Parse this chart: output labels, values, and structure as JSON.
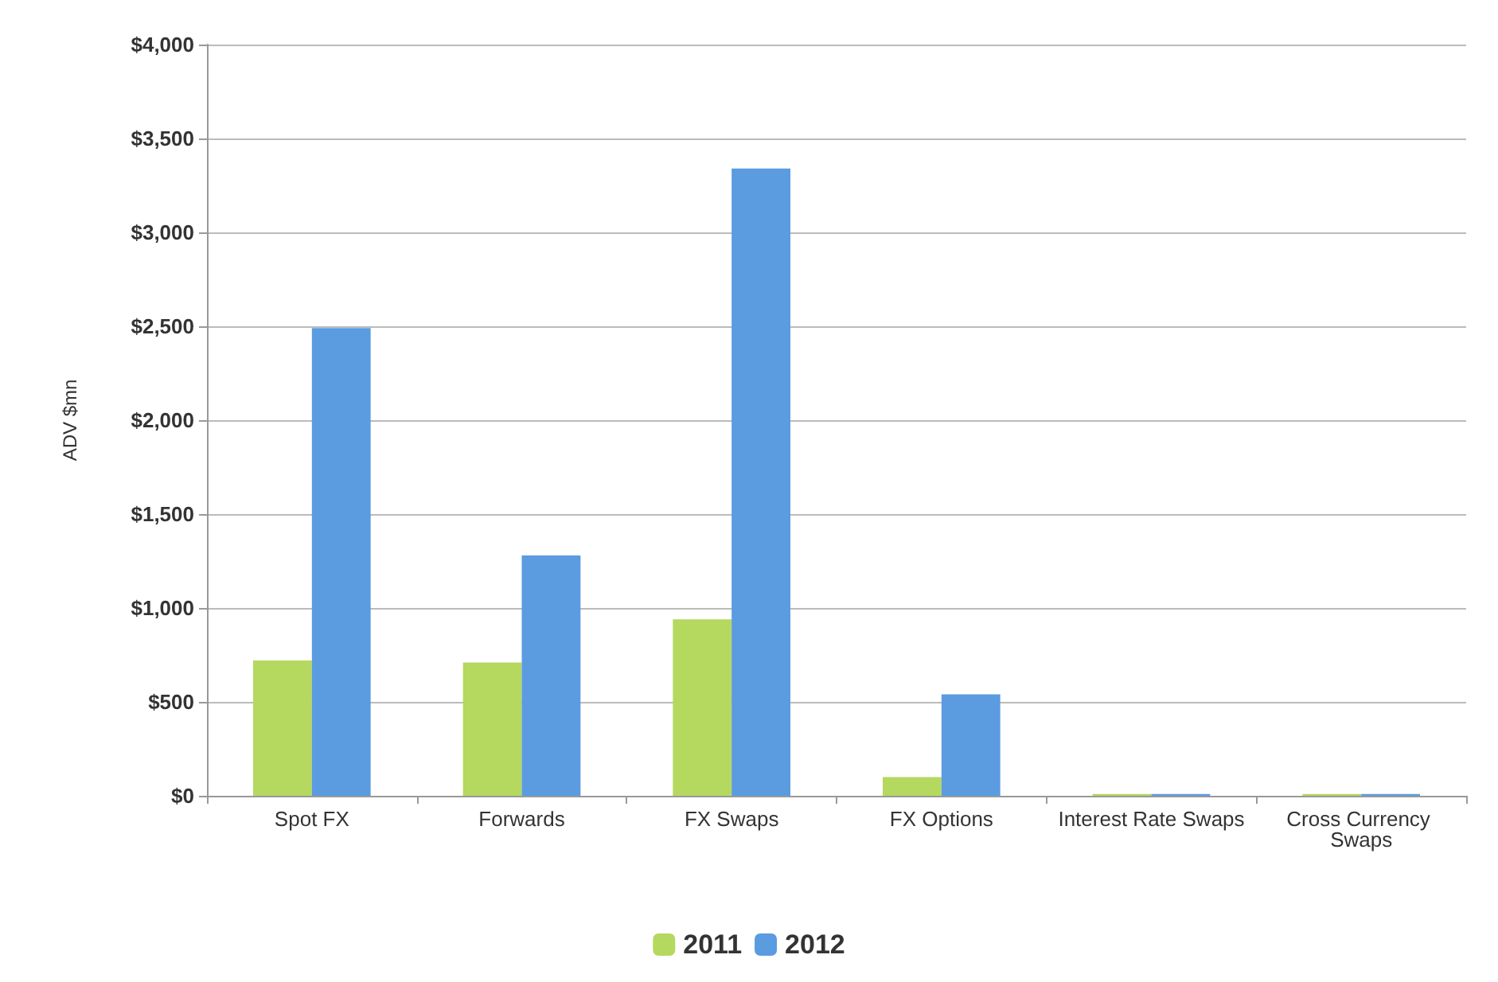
{
  "chart_data": {
    "type": "bar",
    "ylabel": "ADV $mn",
    "categories": [
      "Spot FX",
      "Forwards",
      "FX Swaps",
      "FX Options",
      "Interest Rate Swaps",
      "Cross Currency Swaps"
    ],
    "series": [
      {
        "name": "2011",
        "color": "#b5d85f",
        "values": [
          720,
          710,
          940,
          100,
          10,
          10
        ]
      },
      {
        "name": "2012",
        "color": "#5b9be0",
        "values": [
          2490,
          1280,
          3340,
          540,
          10,
          10
        ]
      }
    ],
    "ylim": [
      0,
      4000
    ],
    "yticks": [
      {
        "value": 0,
        "label": "$0"
      },
      {
        "value": 500,
        "label": "$500"
      },
      {
        "value": 1000,
        "label": "$1,000"
      },
      {
        "value": 1500,
        "label": "$1,500"
      },
      {
        "value": 2000,
        "label": "$2,000"
      },
      {
        "value": 2500,
        "label": "$2,500"
      },
      {
        "value": 3000,
        "label": "$3,000"
      },
      {
        "value": 3500,
        "label": "$3,500"
      },
      {
        "value": 4000,
        "label": "$4,000"
      }
    ],
    "grid": true,
    "legend": "bottom"
  }
}
